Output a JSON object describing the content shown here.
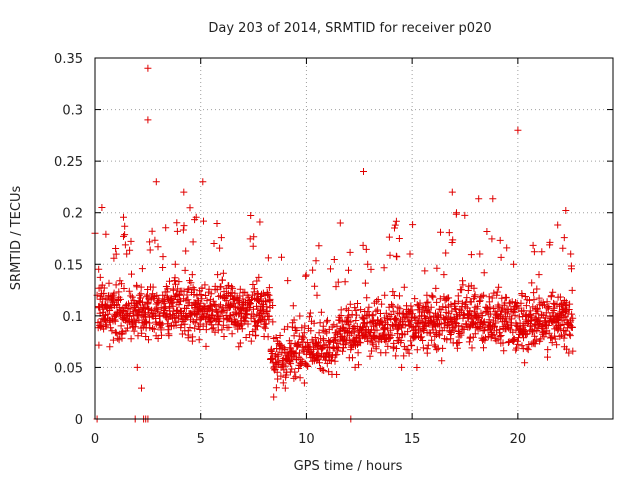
{
  "chart_data": {
    "type": "scatter",
    "title": "Day 203 of 2014, SRMTID for receiver p020",
    "xlabel": "GPS time / hours",
    "ylabel": "SRMTID / TECUs",
    "xlim": [
      0,
      24.5
    ],
    "ylim": [
      0,
      0.35
    ],
    "xticks": [
      0,
      5,
      10,
      15,
      20
    ],
    "yticks": [
      0,
      0.05,
      0.1,
      0.15,
      0.2,
      0.25,
      0.3,
      0.35
    ],
    "xtick_labels": [
      "0",
      "5",
      "10",
      "15",
      "20"
    ],
    "ytick_labels": [
      "0",
      "0.05",
      "0.1",
      "0.15",
      "0.2",
      "0.25",
      "0.3",
      "0.35"
    ],
    "grid": true,
    "marker": "+",
    "marker_color": "#e00000",
    "sampled_points": {
      "x": [
        0.0,
        0.1,
        0.3,
        0.5,
        0.7,
        1.0,
        1.3,
        1.5,
        1.8,
        2.0,
        2.1,
        2.2,
        2.4,
        2.5,
        2.5,
        2.7,
        2.9,
        3.2,
        3.5,
        3.8,
        4.0,
        4.2,
        4.4,
        4.6,
        4.9,
        5.1,
        5.2,
        5.5,
        5.8,
        6.1,
        6.4,
        6.8,
        7.2,
        7.6,
        8.0,
        8.4,
        8.8,
        9.0,
        9.3,
        9.7,
        10.1,
        10.5,
        10.8,
        11.2,
        11.6,
        12.0,
        12.3,
        12.7,
        12.9,
        13.3,
        13.7,
        14.1,
        14.5,
        14.9,
        15.3,
        15.7,
        16.1,
        16.5,
        16.9,
        17.1,
        17.4,
        17.8,
        18.2,
        18.6,
        19.0,
        19.4,
        19.8,
        20.0,
        20.2,
        20.6,
        21.0,
        21.4,
        21.8,
        22.2,
        22.5
      ],
      "y": [
        0.18,
        0.12,
        0.09,
        0.11,
        0.07,
        0.13,
        0.1,
        0.16,
        0.09,
        0.05,
        0.12,
        0.03,
        0.08,
        0.34,
        0.29,
        0.1,
        0.23,
        0.12,
        0.09,
        0.15,
        0.12,
        0.22,
        0.11,
        0.14,
        0.09,
        0.23,
        0.13,
        0.1,
        0.14,
        0.08,
        0.11,
        0.07,
        0.12,
        0.09,
        0.08,
        0.11,
        0.05,
        0.03,
        0.06,
        0.04,
        0.07,
        0.12,
        0.09,
        0.06,
        0.19,
        0.1,
        0.05,
        0.24,
        0.15,
        0.07,
        0.12,
        0.09,
        0.05,
        0.16,
        0.08,
        0.12,
        0.07,
        0.14,
        0.22,
        0.2,
        0.13,
        0.1,
        0.16,
        0.08,
        0.12,
        0.09,
        0.15,
        0.28,
        0.12,
        0.09,
        0.14,
        0.06,
        0.1,
        0.07,
        0.16
      ],
      "zeros_x": [
        0.1,
        1.9,
        2.3,
        2.4,
        2.5,
        12.1
      ]
    }
  }
}
